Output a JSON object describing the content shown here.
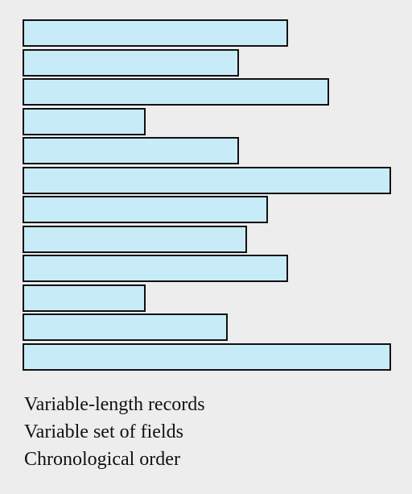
{
  "diagram": {
    "records": [
      {
        "length": 0.72
      },
      {
        "length": 0.588
      },
      {
        "length": 0.832
      },
      {
        "length": 0.333
      },
      {
        "length": 0.588
      },
      {
        "length": 1.0
      },
      {
        "length": 0.666
      },
      {
        "length": 0.61
      },
      {
        "length": 0.72
      },
      {
        "length": 0.333
      },
      {
        "length": 0.556
      },
      {
        "length": 1.0
      }
    ],
    "colors": {
      "record_fill": "#c8ebf8",
      "record_border": "#111111",
      "background": "#ededed"
    }
  },
  "captions": [
    "Variable-length records",
    "Variable set of fields",
    "Chronological order"
  ]
}
